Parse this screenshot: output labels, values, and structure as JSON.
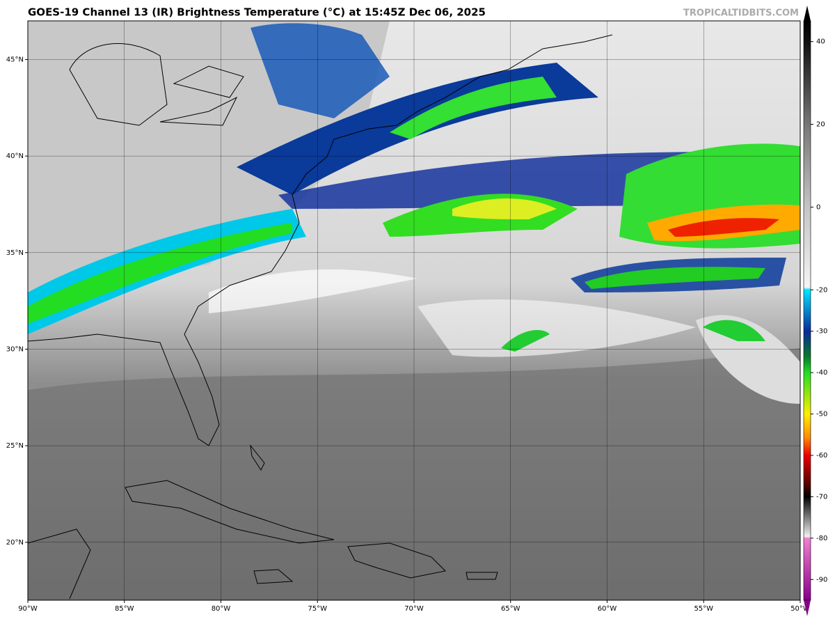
{
  "chart_data": {
    "type": "map",
    "title": "GOES-19 Channel 13 (IR) Brightness Temperature (°C) at 15:45Z Dec 06, 2025",
    "watermark": "TROPICALTIDBITS.COM",
    "xlim": [
      -90,
      -50
    ],
    "ylim": [
      17,
      47
    ],
    "grid": true,
    "xticks": [
      {
        "value": -90,
        "label": "90°W"
      },
      {
        "value": -85,
        "label": "85°W"
      },
      {
        "value": -80,
        "label": "80°W"
      },
      {
        "value": -75,
        "label": "75°W"
      },
      {
        "value": -70,
        "label": "70°W"
      },
      {
        "value": -65,
        "label": "65°W"
      },
      {
        "value": -60,
        "label": "60°W"
      },
      {
        "value": -55,
        "label": "55°W"
      },
      {
        "value": -50,
        "label": "50°W"
      }
    ],
    "yticks": [
      {
        "value": 20,
        "label": "20°N"
      },
      {
        "value": 25,
        "label": "25°N"
      },
      {
        "value": 30,
        "label": "30°N"
      },
      {
        "value": 35,
        "label": "35°N"
      },
      {
        "value": 40,
        "label": "40°N"
      },
      {
        "value": 45,
        "label": "45°N"
      }
    ],
    "colorbar": {
      "lim": [
        -95,
        45
      ],
      "ticks": [
        40,
        20,
        0,
        -20,
        -30,
        -40,
        -50,
        -60,
        -70,
        -80,
        -90
      ]
    }
  }
}
